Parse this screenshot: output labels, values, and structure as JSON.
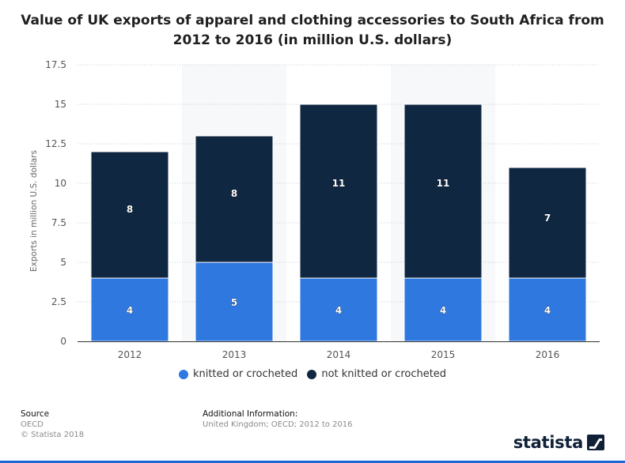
{
  "chart_data": {
    "type": "bar",
    "stacked": true,
    "title": "Value of UK exports of apparel and clothing accessories to South Africa from 2012 to 2016 (in million U.S. dollars)",
    "xlabel": "",
    "ylabel": "Exports in million U.S. dollars",
    "ylim": [
      0,
      17.5
    ],
    "yticks": [
      "0",
      "2.5",
      "5",
      "7.5",
      "10",
      "12.5",
      "15",
      "17.5"
    ],
    "grid": true,
    "categories": [
      "2012",
      "2013",
      "2014",
      "2015",
      "2016"
    ],
    "series": [
      {
        "name": "knitted or crocheted",
        "color": "#2f78e0",
        "values": [
          4,
          5,
          4,
          4,
          4
        ]
      },
      {
        "name": "not knitted or crocheted",
        "color": "#102742",
        "values": [
          8,
          8,
          11,
          11,
          7
        ]
      }
    ],
    "legend_position": "bottom"
  },
  "footer": {
    "source_label": "Source",
    "source_value": "OECD",
    "copyright": "© Statista 2018",
    "info_label": "Additional Information:",
    "info_value": "United Kingdom; OECD; 2012 to 2016"
  },
  "brand": {
    "name": "statista"
  }
}
